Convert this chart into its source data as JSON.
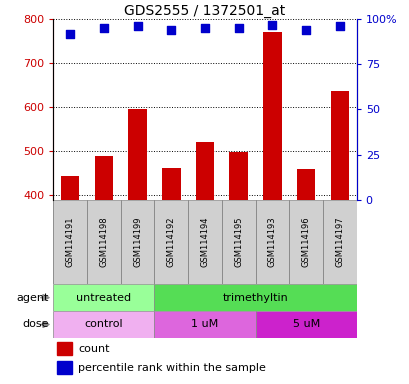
{
  "title": "GDS2555 / 1372501_at",
  "samples": [
    "GSM114191",
    "GSM114198",
    "GSM114199",
    "GSM114192",
    "GSM114194",
    "GSM114195",
    "GSM114193",
    "GSM114196",
    "GSM114197"
  ],
  "counts": [
    443,
    490,
    597,
    463,
    522,
    498,
    770,
    460,
    637
  ],
  "percentiles": [
    92,
    95,
    96,
    94,
    95,
    95,
    97,
    94,
    96
  ],
  "ylim_left": [
    390,
    800
  ],
  "ylim_right": [
    0,
    100
  ],
  "yticks_left": [
    400,
    500,
    600,
    700,
    800
  ],
  "yticks_right": [
    0,
    25,
    50,
    75,
    100
  ],
  "bar_color": "#cc0000",
  "dot_color": "#0000cc",
  "bar_bottom": 390,
  "agent_groups": [
    {
      "label": "untreated",
      "start": 0,
      "end": 3,
      "color": "#99ff99"
    },
    {
      "label": "trimethyltin",
      "start": 3,
      "end": 9,
      "color": "#55dd55"
    }
  ],
  "dose_groups": [
    {
      "label": "control",
      "start": 0,
      "end": 3,
      "color": "#f0b0f0"
    },
    {
      "label": "1 uM",
      "start": 3,
      "end": 6,
      "color": "#dd66dd"
    },
    {
      "label": "5 uM",
      "start": 6,
      "end": 9,
      "color": "#cc22cc"
    }
  ],
  "legend_items": [
    {
      "color": "#cc0000",
      "label": "count"
    },
    {
      "color": "#0000cc",
      "label": "percentile rank within the sample"
    }
  ],
  "sample_bg_color": "#d0d0d0",
  "left_tick_color": "#cc0000",
  "right_tick_color": "#0000cc",
  "grid_color": "#000000",
  "left_label_outside": "agent",
  "right_label_outside": "dose"
}
